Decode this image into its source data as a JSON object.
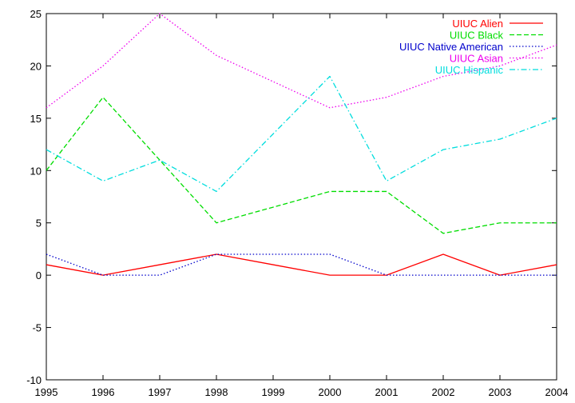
{
  "chart_data": {
    "type": "line",
    "title": "",
    "xlabel": "",
    "ylabel": "",
    "x": [
      1995,
      1996,
      1997,
      1998,
      1999,
      2000,
      2001,
      2002,
      2003,
      2004
    ],
    "xlim": [
      1995,
      2004
    ],
    "ylim": [
      -10,
      25
    ],
    "xticks": [
      "1995",
      "1996",
      "1997",
      "1998",
      "1999",
      "2000",
      "2001",
      "2002",
      "2003",
      "2004"
    ],
    "yticks": [
      "-10",
      "-5",
      "0",
      "5",
      "10",
      "15",
      "20",
      "25"
    ],
    "grid": false,
    "legend_position": "top-right",
    "series": [
      {
        "name": "UIUC Alien",
        "color": "#ff0000",
        "dash": "solid",
        "values": [
          1,
          0,
          1,
          2,
          1,
          0,
          0,
          2,
          0,
          1
        ]
      },
      {
        "name": "UIUC Black",
        "color": "#00dd00",
        "dash": "dashed",
        "values": [
          10,
          17,
          11,
          5,
          6.5,
          8,
          8,
          4,
          5,
          5
        ]
      },
      {
        "name": "UIUC Native American",
        "color": "#0000cc",
        "dash": "dotted",
        "values": [
          2,
          0,
          0,
          2,
          2,
          2,
          0,
          0,
          0,
          0
        ]
      },
      {
        "name": "UIUC Asian",
        "color": "#ee00ee",
        "dash": "dotted",
        "values": [
          16,
          20,
          25,
          21,
          18.5,
          16,
          17,
          19,
          20,
          22
        ]
      },
      {
        "name": "UIUC Hispanic",
        "color": "#00dddd",
        "dash": "dashdot",
        "values": [
          12,
          9,
          11,
          8,
          13.5,
          19,
          9,
          12,
          13,
          15
        ]
      }
    ]
  }
}
